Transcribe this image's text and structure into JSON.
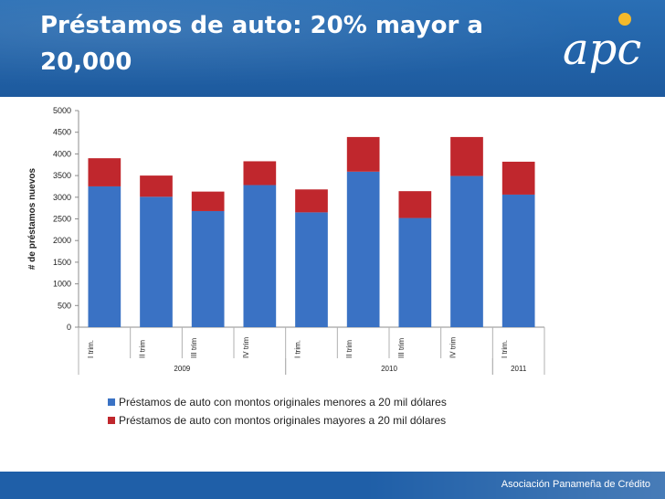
{
  "slide": {
    "title": "Préstamos de auto:  20% mayor a 20,000",
    "organization": "Asociación Panameña de Crédito"
  },
  "colors": {
    "header": "#2466ad",
    "series_low": "#3a72c4",
    "series_high": "#c0272d",
    "footer": "#1f5fa8"
  },
  "icons": {
    "logo": "apc-logo"
  },
  "chart_data": {
    "type": "bar",
    "stacked": true,
    "ylabel": "# de préstamos nuevos",
    "ylim": [
      0,
      5000
    ],
    "yticks": [
      "0",
      "500",
      "1000",
      "1500",
      "2000",
      "2500",
      "3000",
      "3500",
      "4000",
      "4500",
      "5000"
    ],
    "categories": [
      "I trim.",
      "II trim",
      "III trim",
      "IV trim",
      "I trim.",
      "II trim",
      "III trim",
      "IV trim",
      "I trim."
    ],
    "groups": [
      {
        "label": "2009",
        "from": 0,
        "to": 3
      },
      {
        "label": "2010",
        "from": 4,
        "to": 7
      },
      {
        "label": "2011",
        "from": 8,
        "to": 8
      }
    ],
    "series": [
      {
        "name": "Préstamos de auto con montos originales menores a 20 mil dólares",
        "color": "#3a72c4",
        "values": [
          3250,
          3010,
          2680,
          3280,
          2650,
          3590,
          2520,
          3490,
          3060
        ]
      },
      {
        "name": "Préstamos de auto con montos originales mayores a 20 mil dólares",
        "color": "#c0272d",
        "values": [
          650,
          490,
          450,
          550,
          530,
          800,
          620,
          900,
          760
        ]
      }
    ],
    "legend_position": "bottom",
    "grid": false
  }
}
